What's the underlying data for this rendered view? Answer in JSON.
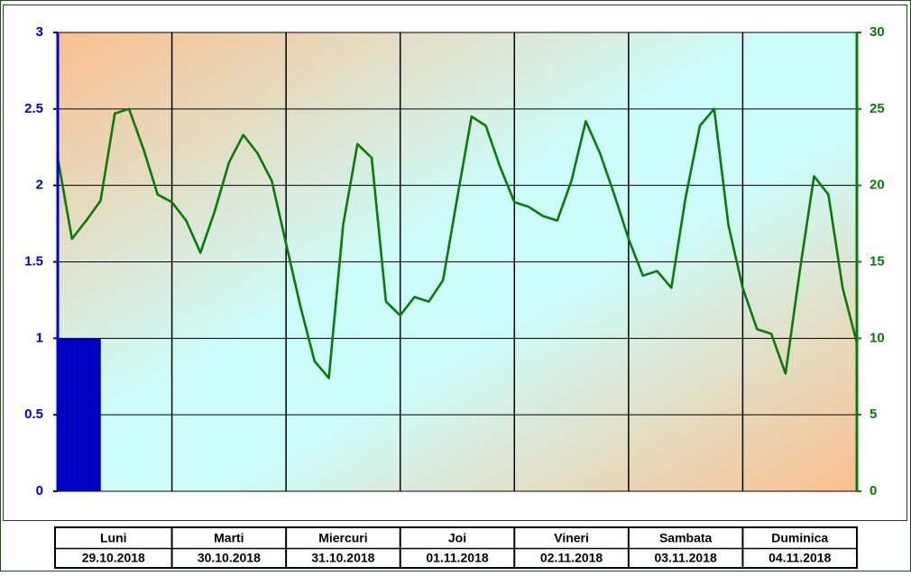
{
  "chart_data": {
    "type": "combo",
    "xlim": [
      0,
      168
    ],
    "xticks": [
      0,
      24,
      48,
      72,
      96,
      120,
      144,
      168
    ],
    "ylim": [
      0,
      3
    ],
    "yticks": [
      0,
      0.5,
      1,
      1.5,
      2,
      2.5,
      3
    ],
    "y2lim": [
      0,
      30
    ],
    "y2ticks": [
      0,
      5,
      10,
      15,
      20,
      25,
      30
    ],
    "grid": true,
    "categories": [
      "Luni",
      "Marti",
      "Miercuri",
      "Joi",
      "Vineri",
      "Sambata",
      "Duminica"
    ],
    "dates": [
      "29.10.2018",
      "30.10.2018",
      "31.10.2018",
      "01.11.2018",
      "02.11.2018",
      "03.11.2018",
      "04.11.2018"
    ],
    "series": [
      {
        "type": "bar",
        "color": "#0000cc",
        "x": [
          0,
          1,
          2,
          3,
          4,
          5,
          6,
          7,
          8
        ],
        "values": [
          1,
          1,
          1,
          1,
          1,
          1,
          1,
          1,
          1
        ]
      },
      {
        "type": "line",
        "color": "#0a7a0a",
        "axis": "y2",
        "x": [
          0,
          3,
          6,
          9,
          12,
          15,
          18,
          21,
          24,
          27,
          30,
          33,
          36,
          39,
          42,
          45,
          48,
          51,
          54,
          57,
          60,
          63,
          66,
          69,
          72,
          75,
          78,
          81,
          84,
          87,
          90,
          93,
          96,
          99,
          102,
          105,
          108,
          111,
          114,
          117,
          120,
          123,
          126,
          129,
          132,
          135,
          138,
          141,
          144,
          147,
          150,
          153,
          156,
          159,
          162,
          165,
          168
        ],
        "values": [
          21.8,
          16.5,
          17.7,
          19.0,
          24.7,
          25.0,
          22.4,
          19.4,
          18.9,
          17.7,
          15.6,
          18.3,
          21.5,
          23.3,
          22.1,
          20.3,
          16.2,
          12.1,
          8.5,
          7.4,
          17.4,
          22.7,
          21.8,
          12.4,
          11.5,
          12.7,
          12.4,
          13.8,
          19.2,
          24.5,
          23.9,
          21.2,
          18.9,
          18.6,
          18.0,
          17.7,
          20.3,
          24.2,
          22.1,
          19.4,
          16.5,
          14.1,
          14.4,
          13.3,
          19.2,
          23.9,
          25.0,
          17.4,
          13.3,
          10.6,
          10.3,
          7.7,
          14.4,
          20.6,
          19.4,
          13.3,
          9.7
        ]
      }
    ]
  }
}
